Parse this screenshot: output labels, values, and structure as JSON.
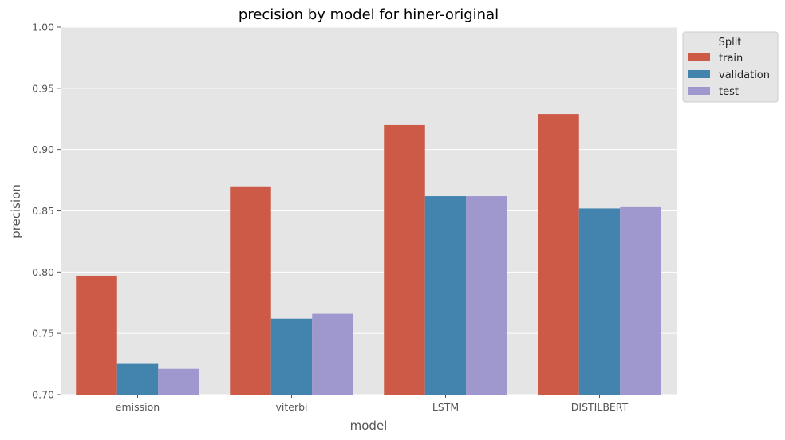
{
  "chart_data": {
    "type": "bar",
    "title": "precision by model for hiner-original",
    "xlabel": "model",
    "ylabel": "precision",
    "categories": [
      "emission",
      "viterbi",
      "LSTM",
      "DISTILBERT"
    ],
    "ylim": [
      0.7,
      1.0
    ],
    "yticks": [
      "0.70",
      "0.75",
      "0.80",
      "0.85",
      "0.90",
      "0.95",
      "1.00"
    ],
    "grid": true,
    "legend": {
      "title": "Split",
      "placement": "outside-top-right"
    },
    "series": [
      {
        "name": "train",
        "color": "#cd5a47",
        "values": [
          0.797,
          0.87,
          0.92,
          0.929
        ]
      },
      {
        "name": "validation",
        "color": "#4284ad",
        "values": [
          0.725,
          0.762,
          0.862,
          0.852
        ]
      },
      {
        "name": "test",
        "color": "#9f98ce",
        "values": [
          0.721,
          0.766,
          0.862,
          0.853
        ]
      }
    ],
    "background_color": "#e5e5e5",
    "grid_color": "#ffffff"
  }
}
